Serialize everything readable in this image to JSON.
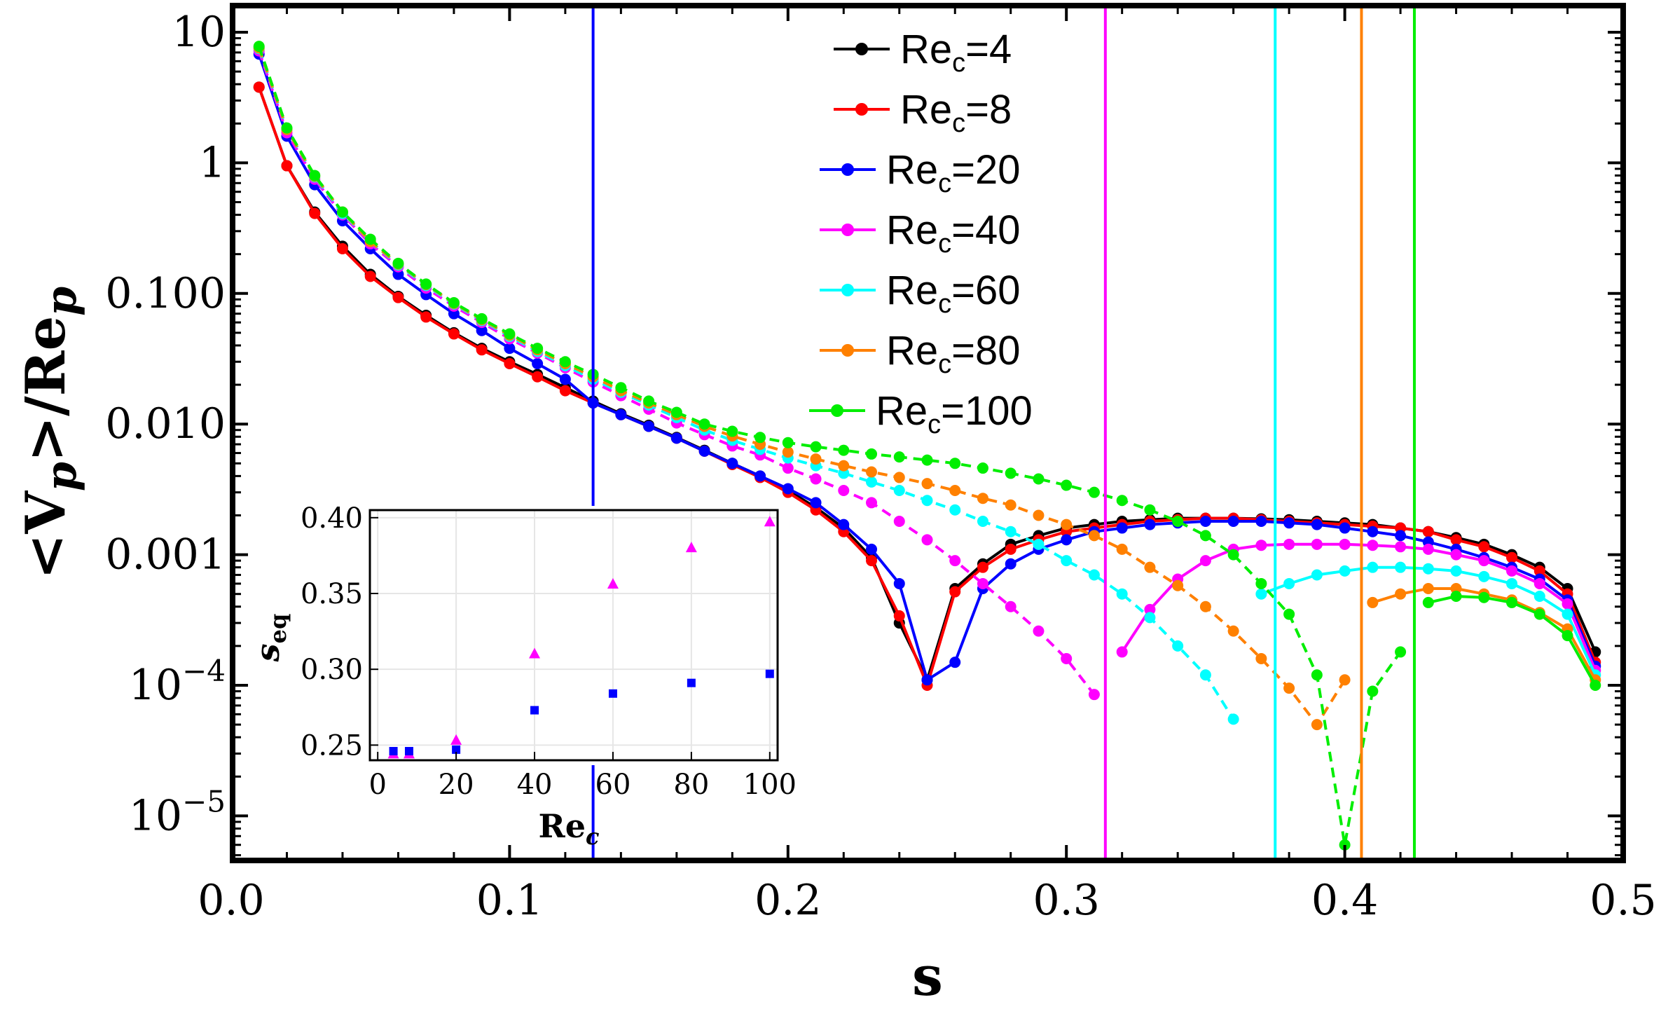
{
  "chart_data": [
    {
      "type": "line",
      "yscale": "log",
      "xlabel": "s",
      "ylabel_parts": [
        "<V",
        "p",
        ">/Re",
        "p"
      ],
      "xlim": [
        0.0,
        0.5
      ],
      "ylim": [
        5e-06,
        15
      ],
      "x_ticks": [
        0.0,
        0.1,
        0.2,
        0.3,
        0.4,
        0.5
      ],
      "x_tick_labels": [
        "0.0",
        "0.1",
        "0.2",
        "0.3",
        "0.4",
        "0.5"
      ],
      "y_tick_labels": [
        {
          "value": 10,
          "text": "10"
        },
        {
          "value": 1,
          "text": "1"
        },
        {
          "value": 0.1,
          "text": "0.100"
        },
        {
          "value": 0.01,
          "text": "0.010"
        },
        {
          "value": 0.001,
          "text": "0.001"
        },
        {
          "value": 0.0001,
          "base": "10",
          "exp": "−4"
        },
        {
          "value": 1e-05,
          "base": "10",
          "exp": "−5"
        }
      ],
      "legend_position": "top-center",
      "series": [
        {
          "name": "Re_c=4",
          "label_main": "Re",
          "label_sub": "c",
          "label_tail": "=4",
          "color": "#000000",
          "dashed": false,
          "x": [
            0.01,
            0.02,
            0.03,
            0.04,
            0.05,
            0.06,
            0.07,
            0.08,
            0.09,
            0.1,
            0.11,
            0.12,
            0.13,
            0.14,
            0.15,
            0.16,
            0.17,
            0.18,
            0.19,
            0.2,
            0.21,
            0.22,
            0.23,
            0.24,
            0.25,
            0.26,
            0.27,
            0.28,
            0.29,
            0.3,
            0.31,
            0.32,
            0.33,
            0.34,
            0.35,
            0.36,
            0.37,
            0.38,
            0.39,
            0.4,
            0.41,
            0.42,
            0.43,
            0.44,
            0.45,
            0.46,
            0.47,
            0.48,
            0.49
          ],
          "y": [
            3.8,
            0.95,
            0.42,
            0.23,
            0.14,
            0.095,
            0.068,
            0.05,
            0.038,
            0.03,
            0.024,
            0.019,
            0.015,
            0.012,
            0.0098,
            0.0079,
            0.0063,
            0.005,
            0.004,
            0.0031,
            0.0023,
            0.0016,
            0.00095,
            0.0003,
            0.00011,
            0.00055,
            0.00085,
            0.0012,
            0.0014,
            0.0016,
            0.0017,
            0.0018,
            0.00185,
            0.0019,
            0.0019,
            0.0019,
            0.00188,
            0.00185,
            0.0018,
            0.00175,
            0.0017,
            0.0016,
            0.0015,
            0.00135,
            0.0012,
            0.001,
            0.0008,
            0.00055,
            0.00018
          ]
        },
        {
          "name": "Re_c=8",
          "label_main": "Re",
          "label_sub": "c",
          "label_tail": "=8",
          "color": "#ff0000",
          "dashed": false,
          "x": [
            0.01,
            0.02,
            0.03,
            0.04,
            0.05,
            0.06,
            0.07,
            0.08,
            0.09,
            0.1,
            0.11,
            0.12,
            0.13,
            0.14,
            0.15,
            0.16,
            0.17,
            0.18,
            0.19,
            0.2,
            0.21,
            0.22,
            0.23,
            0.24,
            0.25,
            0.26,
            0.27,
            0.28,
            0.29,
            0.3,
            0.31,
            0.32,
            0.33,
            0.34,
            0.35,
            0.36,
            0.37,
            0.38,
            0.39,
            0.4,
            0.41,
            0.42,
            0.43,
            0.44,
            0.45,
            0.46,
            0.47,
            0.48,
            0.49
          ],
          "y": [
            3.8,
            0.95,
            0.41,
            0.22,
            0.135,
            0.093,
            0.066,
            0.049,
            0.037,
            0.029,
            0.023,
            0.018,
            0.0145,
            0.0118,
            0.0096,
            0.0078,
            0.0062,
            0.0049,
            0.0039,
            0.003,
            0.0022,
            0.0015,
            0.0009,
            0.00034,
            0.0001,
            0.00052,
            0.0008,
            0.0011,
            0.0013,
            0.0015,
            0.0016,
            0.0017,
            0.0018,
            0.00185,
            0.0019,
            0.0019,
            0.00185,
            0.0018,
            0.00175,
            0.0017,
            0.00165,
            0.0016,
            0.0015,
            0.0013,
            0.00115,
            0.00095,
            0.00075,
            0.0005,
            0.00015
          ]
        },
        {
          "name": "Re_c=20",
          "label_main": "Re",
          "label_sub": "c",
          "label_tail": "=20",
          "color": "#0000ff",
          "dashed": false,
          "x": [
            0.01,
            0.02,
            0.03,
            0.04,
            0.05,
            0.06,
            0.07,
            0.08,
            0.09,
            0.1,
            0.11,
            0.12,
            0.13,
            0.14,
            0.15,
            0.16,
            0.17,
            0.18,
            0.19,
            0.2,
            0.21,
            0.22,
            0.23,
            0.24,
            0.25,
            0.26,
            0.27,
            0.28,
            0.29,
            0.3,
            0.31,
            0.32,
            0.33,
            0.34,
            0.35,
            0.36,
            0.37,
            0.38,
            0.39,
            0.4,
            0.41,
            0.42,
            0.43,
            0.44,
            0.45,
            0.46,
            0.47,
            0.48,
            0.49
          ],
          "y": [
            6.8,
            1.6,
            0.68,
            0.36,
            0.22,
            0.14,
            0.098,
            0.07,
            0.052,
            0.038,
            0.029,
            0.022,
            0.0145,
            0.0118,
            0.0096,
            0.0078,
            0.0062,
            0.005,
            0.004,
            0.0032,
            0.0025,
            0.0017,
            0.0011,
            0.0006,
            0.00011,
            0.00015,
            0.00055,
            0.00085,
            0.0011,
            0.0013,
            0.0015,
            0.0016,
            0.0017,
            0.00175,
            0.0018,
            0.0018,
            0.0018,
            0.00175,
            0.0017,
            0.0016,
            0.0015,
            0.0014,
            0.00125,
            0.0011,
            0.00095,
            0.0008,
            0.00065,
            0.00045,
            0.00014
          ]
        },
        {
          "name": "Re_c=40",
          "label_main": "Re",
          "label_sub": "c",
          "label_tail": "=40",
          "color": "#ff00ff",
          "dashed": true,
          "x": [
            0.01,
            0.02,
            0.03,
            0.04,
            0.05,
            0.06,
            0.07,
            0.08,
            0.09,
            0.1,
            0.11,
            0.12,
            0.13,
            0.14,
            0.15,
            0.16,
            0.17,
            0.18,
            0.19,
            0.2,
            0.21,
            0.22,
            0.23,
            0.24,
            0.25,
            0.26,
            0.27,
            0.28,
            0.29,
            0.3,
            0.31
          ],
          "y": [
            7.2,
            1.7,
            0.75,
            0.4,
            0.24,
            0.16,
            0.11,
            0.08,
            0.06,
            0.045,
            0.035,
            0.027,
            0.021,
            0.0165,
            0.013,
            0.0102,
            0.0083,
            0.0068,
            0.0058,
            0.0046,
            0.0038,
            0.0031,
            0.0025,
            0.0018,
            0.0013,
            0.0009,
            0.0006,
            0.0004,
            0.00026,
            0.00016,
            8.5e-05
          ]
        },
        {
          "name": "Re_c=40 branch",
          "legend": false,
          "color": "#ff00ff",
          "dashed": false,
          "x": [
            0.32,
            0.33,
            0.34,
            0.35,
            0.36,
            0.37,
            0.38,
            0.39,
            0.4,
            0.41,
            0.42,
            0.43,
            0.44,
            0.45,
            0.46,
            0.47,
            0.48,
            0.49
          ],
          "y": [
            0.00018,
            0.00038,
            0.00065,
            0.0009,
            0.0011,
            0.00118,
            0.0012,
            0.0012,
            0.0012,
            0.00118,
            0.00115,
            0.0011,
            0.001,
            0.0009,
            0.00075,
            0.0006,
            0.00042,
            0.00013
          ]
        },
        {
          "name": "Re_c=60",
          "label_main": "Re",
          "label_sub": "c",
          "label_tail": "=60",
          "color": "#00ffff",
          "dashed": true,
          "x": [
            0.01,
            0.02,
            0.03,
            0.04,
            0.05,
            0.06,
            0.07,
            0.08,
            0.09,
            0.1,
            0.11,
            0.12,
            0.13,
            0.14,
            0.15,
            0.16,
            0.17,
            0.18,
            0.19,
            0.2,
            0.21,
            0.22,
            0.23,
            0.24,
            0.25,
            0.26,
            0.27,
            0.28,
            0.29,
            0.3,
            0.31,
            0.32,
            0.33,
            0.34,
            0.35,
            0.36
          ],
          "y": [
            7.5,
            1.8,
            0.78,
            0.41,
            0.25,
            0.165,
            0.115,
            0.083,
            0.062,
            0.047,
            0.036,
            0.028,
            0.022,
            0.0175,
            0.014,
            0.0112,
            0.009,
            0.0075,
            0.0064,
            0.0055,
            0.0048,
            0.0042,
            0.0036,
            0.0031,
            0.0026,
            0.0022,
            0.0018,
            0.0015,
            0.0012,
            0.0009,
            0.0007,
            0.0005,
            0.00033,
            0.0002,
            0.00012,
            5.5e-05
          ]
        },
        {
          "name": "Re_c=60 branch",
          "legend": false,
          "color": "#00ffff",
          "dashed": false,
          "x": [
            0.37,
            0.38,
            0.39,
            0.4,
            0.41,
            0.42,
            0.43,
            0.44,
            0.45,
            0.46,
            0.47,
            0.48,
            0.49
          ],
          "y": [
            0.0005,
            0.0006,
            0.0007,
            0.00075,
            0.0008,
            0.0008,
            0.00078,
            0.00075,
            0.00068,
            0.0006,
            0.00048,
            0.00035,
            0.00012
          ]
        },
        {
          "name": "Re_c=80",
          "label_main": "Re",
          "label_sub": "c",
          "label_tail": "=80",
          "color": "#ff8000",
          "dashed": true,
          "x": [
            0.01,
            0.02,
            0.03,
            0.04,
            0.05,
            0.06,
            0.07,
            0.08,
            0.09,
            0.1,
            0.11,
            0.12,
            0.13,
            0.14,
            0.15,
            0.16,
            0.17,
            0.18,
            0.19,
            0.2,
            0.21,
            0.22,
            0.23,
            0.24,
            0.25,
            0.26,
            0.27,
            0.28,
            0.29,
            0.3,
            0.31,
            0.32,
            0.33,
            0.34,
            0.35,
            0.36,
            0.37,
            0.38,
            0.39,
            0.4
          ],
          "y": [
            7.6,
            1.8,
            0.79,
            0.42,
            0.25,
            0.168,
            0.117,
            0.084,
            0.063,
            0.048,
            0.037,
            0.029,
            0.023,
            0.018,
            0.0145,
            0.0118,
            0.0096,
            0.0081,
            0.007,
            0.0061,
            0.0054,
            0.0048,
            0.0043,
            0.0039,
            0.0035,
            0.0031,
            0.0027,
            0.0024,
            0.002,
            0.0017,
            0.0014,
            0.0011,
            0.0008,
            0.00058,
            0.0004,
            0.00026,
            0.00016,
            9.5e-05,
            5e-05,
            0.00011
          ]
        },
        {
          "name": "Re_c=80 branch",
          "legend": false,
          "color": "#ff8000",
          "dashed": false,
          "x": [
            0.41,
            0.42,
            0.43,
            0.44,
            0.45,
            0.46,
            0.47,
            0.48,
            0.49
          ],
          "y": [
            0.00043,
            0.0005,
            0.00055,
            0.00055,
            0.0005,
            0.00045,
            0.00036,
            0.00027,
            0.00011
          ]
        },
        {
          "name": "Re_c=100",
          "label_main": "Re",
          "label_sub": "c",
          "label_tail": "=100",
          "color": "#00ee00",
          "dashed": true,
          "x": [
            0.01,
            0.02,
            0.03,
            0.04,
            0.05,
            0.06,
            0.07,
            0.08,
            0.09,
            0.1,
            0.11,
            0.12,
            0.13,
            0.14,
            0.15,
            0.16,
            0.17,
            0.18,
            0.19,
            0.2,
            0.21,
            0.22,
            0.23,
            0.24,
            0.25,
            0.26,
            0.27,
            0.28,
            0.29,
            0.3,
            0.31,
            0.32,
            0.33,
            0.34,
            0.35,
            0.36,
            0.37,
            0.38,
            0.39,
            0.4,
            0.41,
            0.42
          ],
          "y": [
            7.8,
            1.85,
            0.8,
            0.42,
            0.26,
            0.17,
            0.118,
            0.085,
            0.064,
            0.049,
            0.038,
            0.03,
            0.024,
            0.019,
            0.015,
            0.0123,
            0.01,
            0.0088,
            0.0079,
            0.0072,
            0.0067,
            0.0063,
            0.0059,
            0.0056,
            0.0053,
            0.005,
            0.0046,
            0.0042,
            0.0038,
            0.0034,
            0.003,
            0.0026,
            0.0022,
            0.0018,
            0.0014,
            0.001,
            0.0006,
            0.00035,
            0.00012,
            6e-06,
            9e-05,
            0.00018
          ]
        },
        {
          "name": "Re_c=100 branch",
          "legend": false,
          "color": "#00ee00",
          "dashed": false,
          "x": [
            0.43,
            0.44,
            0.45,
            0.46,
            0.47,
            0.48,
            0.49
          ],
          "y": [
            0.00043,
            0.00048,
            0.00047,
            0.00043,
            0.00035,
            0.00024,
            0.0001
          ]
        }
      ],
      "vertical_lines": [
        {
          "x": 0.13,
          "color": "#0000ff"
        },
        {
          "x": 0.314,
          "color": "#ff00ff"
        },
        {
          "x": 0.375,
          "color": "#00ffff"
        },
        {
          "x": 0.406,
          "color": "#ff8000"
        },
        {
          "x": 0.425,
          "color": "#00ee00"
        }
      ]
    },
    {
      "type": "scatter",
      "inset": true,
      "xlabel_main": "Re",
      "xlabel_sub": "c",
      "ylabel_main": "s",
      "ylabel_sub": "eq",
      "xlim": [
        -2,
        102
      ],
      "ylim": [
        0.24,
        0.405
      ],
      "x_ticks": [
        0,
        20,
        40,
        60,
        80,
        100
      ],
      "x_tick_labels": [
        "0",
        "20",
        "40",
        "60",
        "80",
        "100"
      ],
      "y_ticks": [
        0.25,
        0.3,
        0.35,
        0.4
      ],
      "y_tick_labels": [
        "0.25",
        "0.30",
        "0.35",
        "0.40"
      ],
      "grid": true,
      "series": [
        {
          "name": "triangles",
          "marker": "triangle",
          "color": "#ff00ff",
          "x": [
            4,
            8,
            20,
            40,
            60,
            80,
            100
          ],
          "y": [
            0.244,
            0.244,
            0.253,
            0.31,
            0.356,
            0.38,
            0.397
          ]
        },
        {
          "name": "squares",
          "marker": "square",
          "color": "#0000ff",
          "x": [
            4,
            8,
            20,
            40,
            60,
            80,
            100
          ],
          "y": [
            0.246,
            0.246,
            0.247,
            0.273,
            0.284,
            0.291,
            0.297
          ]
        }
      ]
    }
  ]
}
